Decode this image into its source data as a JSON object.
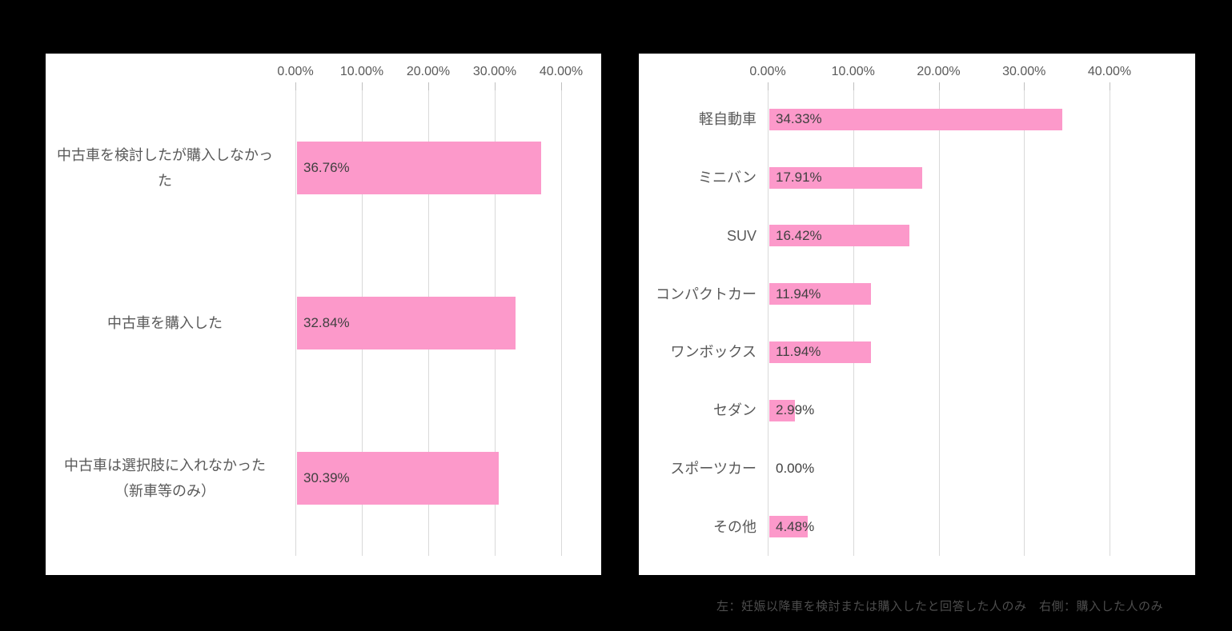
{
  "colors": {
    "page_background": "#000000",
    "panel_background": "#FFFFFF",
    "bar_fill": "#FC99CA",
    "gridline": "#D9D9D9",
    "axis_text": "#595959",
    "value_text": "#404040",
    "footnote_text": "#4D4D4D"
  },
  "footnote": "左：妊娠以降車を検討または購入したと回答した人のみ　右側：購入した人のみ",
  "chart_data": [
    {
      "type": "bar",
      "orientation": "horizontal",
      "title": "",
      "xlabel": "",
      "ylabel": "",
      "xlim": [
        0,
        46
      ],
      "grid": true,
      "tick_values": [
        0,
        10,
        20,
        30,
        40
      ],
      "tick_labels": [
        "0.00%",
        "10.00%",
        "20.00%",
        "30.00%",
        "40.00%"
      ],
      "categories": [
        "中古車を検討したが購入しなかった",
        "中古車を購入した",
        "中古車は選択肢に入れなかった（新車等のみ）"
      ],
      "label_lines": [
        [
          "中古車を検討したが購入しなかっ",
          "た"
        ],
        [
          "中古車を購入した"
        ],
        [
          "中古車は選択肢に入れなかった",
          "（新車等のみ）"
        ]
      ],
      "values": [
        36.76,
        32.84,
        30.39
      ],
      "value_labels": [
        "36.76%",
        "32.84%",
        "30.39%"
      ],
      "value_label_position": "inside-base"
    },
    {
      "type": "bar",
      "orientation": "horizontal",
      "title": "",
      "xlabel": "",
      "ylabel": "",
      "xlim": [
        0,
        50
      ],
      "grid": true,
      "tick_values": [
        0,
        10,
        20,
        30,
        40
      ],
      "tick_labels": [
        "0.00%",
        "10.00%",
        "20.00%",
        "30.00%",
        "40.00%"
      ],
      "categories": [
        "軽自動車",
        "ミニバン",
        "SUV",
        "コンパクトカー",
        "ワンボックス",
        "セダン",
        "スポーツカー",
        "その他"
      ],
      "label_lines": [
        [
          "軽自動車"
        ],
        [
          "ミニバン"
        ],
        [
          "SUV"
        ],
        [
          "コンパクトカー"
        ],
        [
          "ワンボックス"
        ],
        [
          "セダン"
        ],
        [
          "スポーツカー"
        ],
        [
          "その他"
        ]
      ],
      "values": [
        34.33,
        17.91,
        16.42,
        11.94,
        11.94,
        2.99,
        0.0,
        4.48
      ],
      "value_labels": [
        "34.33%",
        "17.91%",
        "16.42%",
        "11.94%",
        "11.94%",
        "2.99%",
        "0.00%",
        "4.48%"
      ],
      "value_label_position": "inside-base"
    }
  ]
}
